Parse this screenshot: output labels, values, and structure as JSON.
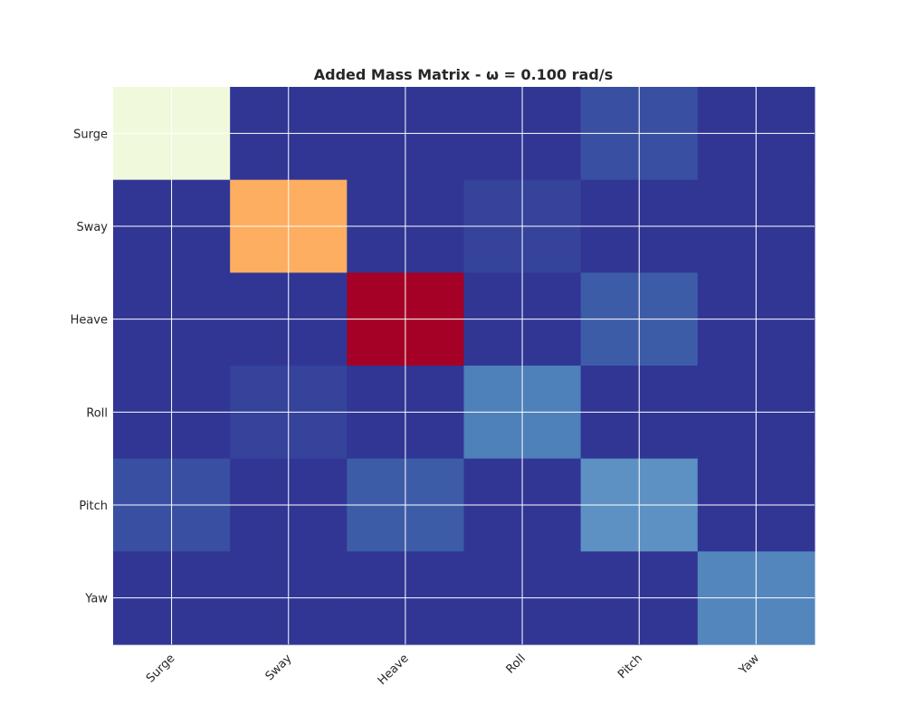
{
  "chart_data": {
    "type": "heatmap",
    "title": "Added Mass Matrix - ω = 0.100 rad/s",
    "xlabel": "",
    "ylabel": "",
    "x_categories": [
      "Surge",
      "Sway",
      "Heave",
      "Roll",
      "Pitch",
      "Yaw"
    ],
    "y_categories": [
      "Surge",
      "Sway",
      "Heave",
      "Roll",
      "Pitch",
      "Yaw"
    ],
    "grid": true,
    "colormap": "RdYlBu_r",
    "values": [
      [
        0.45,
        0.0,
        0.0,
        0.0,
        0.04,
        0.0
      ],
      [
        0.0,
        0.7,
        0.0,
        0.02,
        0.0,
        0.0
      ],
      [
        0.0,
        0.0,
        1.0,
        0.0,
        0.06,
        0.0
      ],
      [
        0.0,
        0.02,
        0.0,
        0.12,
        0.0,
        0.0
      ],
      [
        0.04,
        0.0,
        0.06,
        0.0,
        0.15,
        0.0
      ],
      [
        0.0,
        0.0,
        0.0,
        0.0,
        0.0,
        0.13
      ]
    ]
  }
}
